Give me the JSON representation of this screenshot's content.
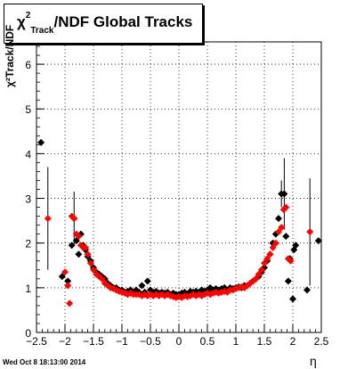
{
  "timestamp": "Wed Oct  8 18:13:00 2014",
  "chart_data": {
    "type": "scatter",
    "title": "χ²Track/NDF  Global Tracks",
    "title_parts": {
      "chi": "χ",
      "sup": "2",
      "sub": "Track",
      "rest": "/NDF  Global Tracks"
    },
    "xlabel": "η",
    "ylabel": "χ²Track/NDF",
    "xlim": [
      -2.5,
      2.5
    ],
    "ylim": [
      0,
      6.5
    ],
    "grid": true,
    "x_ticks": [
      "−2.5",
      "−2",
      "−1.5",
      "−1",
      "−0.5",
      "0",
      "0.5",
      "1",
      "1.5",
      "2",
      "2.5"
    ],
    "y_ticks": [
      "0",
      "1",
      "2",
      "3",
      "4",
      "5",
      "6"
    ],
    "series": [
      {
        "color": "#000000",
        "points": [
          {
            "x": -2.42,
            "y": 4.25
          },
          {
            "x": -2.05,
            "y": 1.25
          },
          {
            "x": -1.95,
            "y": 1.15
          },
          {
            "x": -1.88,
            "y": 1.95
          },
          {
            "x": -1.84,
            "y": 2.55,
            "err": 0.6
          },
          {
            "x": -1.8,
            "y": 2.05
          },
          {
            "x": -1.76,
            "y": 1.75
          },
          {
            "x": -1.72,
            "y": 2.2
          },
          {
            "x": -1.68,
            "y": 1.95
          },
          {
            "x": -1.64,
            "y": 1.85
          },
          {
            "x": -1.6,
            "y": 1.7
          },
          {
            "x": -1.55,
            "y": 1.6
          },
          {
            "x": -1.5,
            "y": 1.45
          },
          {
            "x": -1.45,
            "y": 1.35
          },
          {
            "x": -1.4,
            "y": 1.3
          },
          {
            "x": -1.35,
            "y": 1.25
          },
          {
            "x": -1.3,
            "y": 1.2
          },
          {
            "x": -1.25,
            "y": 1.1
          },
          {
            "x": -1.2,
            "y": 1.05
          },
          {
            "x": -1.15,
            "y": 1.0
          },
          {
            "x": -1.1,
            "y": 1.0
          },
          {
            "x": -1.05,
            "y": 0.95
          },
          {
            "x": -1.0,
            "y": 0.95
          },
          {
            "x": -0.95,
            "y": 0.9
          },
          {
            "x": -0.9,
            "y": 0.92
          },
          {
            "x": -0.85,
            "y": 0.95
          },
          {
            "x": -0.8,
            "y": 0.9
          },
          {
            "x": -0.75,
            "y": 0.95
          },
          {
            "x": -0.7,
            "y": 0.9
          },
          {
            "x": -0.65,
            "y": 1.05
          },
          {
            "x": -0.6,
            "y": 0.9
          },
          {
            "x": -0.55,
            "y": 1.15
          },
          {
            "x": -0.5,
            "y": 0.95
          },
          {
            "x": -0.45,
            "y": 0.9
          },
          {
            "x": -0.4,
            "y": 0.92
          },
          {
            "x": -0.35,
            "y": 0.88
          },
          {
            "x": -0.3,
            "y": 0.9
          },
          {
            "x": -0.25,
            "y": 0.88
          },
          {
            "x": -0.2,
            "y": 0.9
          },
          {
            "x": -0.15,
            "y": 0.85
          },
          {
            "x": -0.1,
            "y": 0.88
          },
          {
            "x": -0.05,
            "y": 0.85
          },
          {
            "x": 0.0,
            "y": 0.85
          },
          {
            "x": 0.05,
            "y": 0.88
          },
          {
            "x": 0.1,
            "y": 0.9
          },
          {
            "x": 0.15,
            "y": 0.85
          },
          {
            "x": 0.2,
            "y": 0.92
          },
          {
            "x": 0.25,
            "y": 0.9
          },
          {
            "x": 0.3,
            "y": 0.92
          },
          {
            "x": 0.35,
            "y": 0.9
          },
          {
            "x": 0.4,
            "y": 0.95
          },
          {
            "x": 0.45,
            "y": 0.92
          },
          {
            "x": 0.5,
            "y": 0.95
          },
          {
            "x": 0.55,
            "y": 1.0
          },
          {
            "x": 0.6,
            "y": 0.95
          },
          {
            "x": 0.65,
            "y": 0.98
          },
          {
            "x": 0.7,
            "y": 0.95
          },
          {
            "x": 0.75,
            "y": 0.98
          },
          {
            "x": 0.8,
            "y": 1.0
          },
          {
            "x": 0.85,
            "y": 0.95
          },
          {
            "x": 0.9,
            "y": 1.0
          },
          {
            "x": 0.95,
            "y": 0.98
          },
          {
            "x": 1.0,
            "y": 1.0
          },
          {
            "x": 1.05,
            "y": 1.02
          },
          {
            "x": 1.1,
            "y": 1.0
          },
          {
            "x": 1.15,
            "y": 1.05
          },
          {
            "x": 1.2,
            "y": 1.05
          },
          {
            "x": 1.25,
            "y": 1.1
          },
          {
            "x": 1.3,
            "y": 1.15
          },
          {
            "x": 1.35,
            "y": 1.2
          },
          {
            "x": 1.4,
            "y": 1.25
          },
          {
            "x": 1.45,
            "y": 1.35
          },
          {
            "x": 1.5,
            "y": 1.45
          },
          {
            "x": 1.55,
            "y": 1.6
          },
          {
            "x": 1.6,
            "y": 1.75
          },
          {
            "x": 1.65,
            "y": 2.0
          },
          {
            "x": 1.7,
            "y": 2.2
          },
          {
            "x": 1.75,
            "y": 2.55
          },
          {
            "x": 1.8,
            "y": 3.1,
            "err": 0.3
          },
          {
            "x": 1.85,
            "y": 3.1,
            "err": 0.8
          },
          {
            "x": 1.88,
            "y": 2.15
          },
          {
            "x": 1.92,
            "y": 1.15
          },
          {
            "x": 1.95,
            "y": 1.65
          },
          {
            "x": 2.0,
            "y": 0.75
          },
          {
            "x": 2.02,
            "y": 1.85
          },
          {
            "x": 2.05,
            "y": 1.95
          },
          {
            "x": 2.25,
            "y": 0.95
          },
          {
            "x": 2.45,
            "y": 2.05
          }
        ]
      },
      {
        "color": "#ff0000",
        "points": [
          {
            "x": -2.3,
            "y": 2.55,
            "err": 1.15
          },
          {
            "x": -2.0,
            "y": 1.35
          },
          {
            "x": -1.95,
            "y": 1.05
          },
          {
            "x": -1.92,
            "y": 0.65
          },
          {
            "x": -1.88,
            "y": 2.6
          },
          {
            "x": -1.84,
            "y": 2.55
          },
          {
            "x": -1.8,
            "y": 2.2
          },
          {
            "x": -1.76,
            "y": 2.15
          },
          {
            "x": -1.72,
            "y": 1.95
          },
          {
            "x": -1.68,
            "y": 1.9
          },
          {
            "x": -1.64,
            "y": 1.9
          },
          {
            "x": -1.6,
            "y": 1.75
          },
          {
            "x": -1.55,
            "y": 1.55
          },
          {
            "x": -1.5,
            "y": 1.4
          },
          {
            "x": -1.45,
            "y": 1.3
          },
          {
            "x": -1.4,
            "y": 1.25
          },
          {
            "x": -1.35,
            "y": 1.2
          },
          {
            "x": -1.3,
            "y": 1.1
          },
          {
            "x": -1.25,
            "y": 1.05
          },
          {
            "x": -1.2,
            "y": 1.0
          },
          {
            "x": -1.15,
            "y": 0.98
          },
          {
            "x": -1.1,
            "y": 0.95
          },
          {
            "x": -1.05,
            "y": 0.92
          },
          {
            "x": -1.0,
            "y": 0.9
          },
          {
            "x": -0.95,
            "y": 0.88
          },
          {
            "x": -0.9,
            "y": 0.85
          },
          {
            "x": -0.85,
            "y": 0.88
          },
          {
            "x": -0.8,
            "y": 0.85
          },
          {
            "x": -0.75,
            "y": 0.85
          },
          {
            "x": -0.7,
            "y": 0.85
          },
          {
            "x": -0.65,
            "y": 0.82
          },
          {
            "x": -0.6,
            "y": 0.85
          },
          {
            "x": -0.55,
            "y": 0.82
          },
          {
            "x": -0.5,
            "y": 0.85
          },
          {
            "x": -0.45,
            "y": 0.82
          },
          {
            "x": -0.4,
            "y": 0.85
          },
          {
            "x": -0.35,
            "y": 0.82
          },
          {
            "x": -0.3,
            "y": 0.85
          },
          {
            "x": -0.25,
            "y": 0.82
          },
          {
            "x": -0.2,
            "y": 0.85
          },
          {
            "x": -0.15,
            "y": 0.82
          },
          {
            "x": -0.1,
            "y": 0.8
          },
          {
            "x": -0.05,
            "y": 0.78
          },
          {
            "x": 0.0,
            "y": 0.8
          },
          {
            "x": 0.05,
            "y": 0.78
          },
          {
            "x": 0.1,
            "y": 0.82
          },
          {
            "x": 0.15,
            "y": 0.8
          },
          {
            "x": 0.2,
            "y": 0.82
          },
          {
            "x": 0.25,
            "y": 0.85
          },
          {
            "x": 0.3,
            "y": 0.82
          },
          {
            "x": 0.35,
            "y": 0.85
          },
          {
            "x": 0.4,
            "y": 0.82
          },
          {
            "x": 0.45,
            "y": 0.85
          },
          {
            "x": 0.5,
            "y": 0.88
          },
          {
            "x": 0.55,
            "y": 0.85
          },
          {
            "x": 0.6,
            "y": 0.88
          },
          {
            "x": 0.65,
            "y": 0.9
          },
          {
            "x": 0.7,
            "y": 0.88
          },
          {
            "x": 0.75,
            "y": 0.9
          },
          {
            "x": 0.8,
            "y": 0.92
          },
          {
            "x": 0.85,
            "y": 0.9
          },
          {
            "x": 0.9,
            "y": 0.95
          },
          {
            "x": 0.95,
            "y": 0.95
          },
          {
            "x": 1.0,
            "y": 0.98
          },
          {
            "x": 1.05,
            "y": 1.0
          },
          {
            "x": 1.1,
            "y": 1.02
          },
          {
            "x": 1.15,
            "y": 1.0
          },
          {
            "x": 1.2,
            "y": 1.05
          },
          {
            "x": 1.25,
            "y": 1.1
          },
          {
            "x": 1.3,
            "y": 1.15
          },
          {
            "x": 1.35,
            "y": 1.2
          },
          {
            "x": 1.4,
            "y": 1.3
          },
          {
            "x": 1.45,
            "y": 1.4
          },
          {
            "x": 1.5,
            "y": 1.55
          },
          {
            "x": 1.55,
            "y": 1.65
          },
          {
            "x": 1.6,
            "y": 1.75
          },
          {
            "x": 1.65,
            "y": 1.9
          },
          {
            "x": 1.7,
            "y": 2.0
          },
          {
            "x": 1.75,
            "y": 2.25
          },
          {
            "x": 1.8,
            "y": 2.35
          },
          {
            "x": 1.84,
            "y": 2.75
          },
          {
            "x": 1.88,
            "y": 2.8
          },
          {
            "x": 1.92,
            "y": 1.65
          },
          {
            "x": 1.96,
            "y": 1.6
          },
          {
            "x": 2.3,
            "y": 2.25,
            "err": 1.2
          }
        ]
      }
    ]
  }
}
